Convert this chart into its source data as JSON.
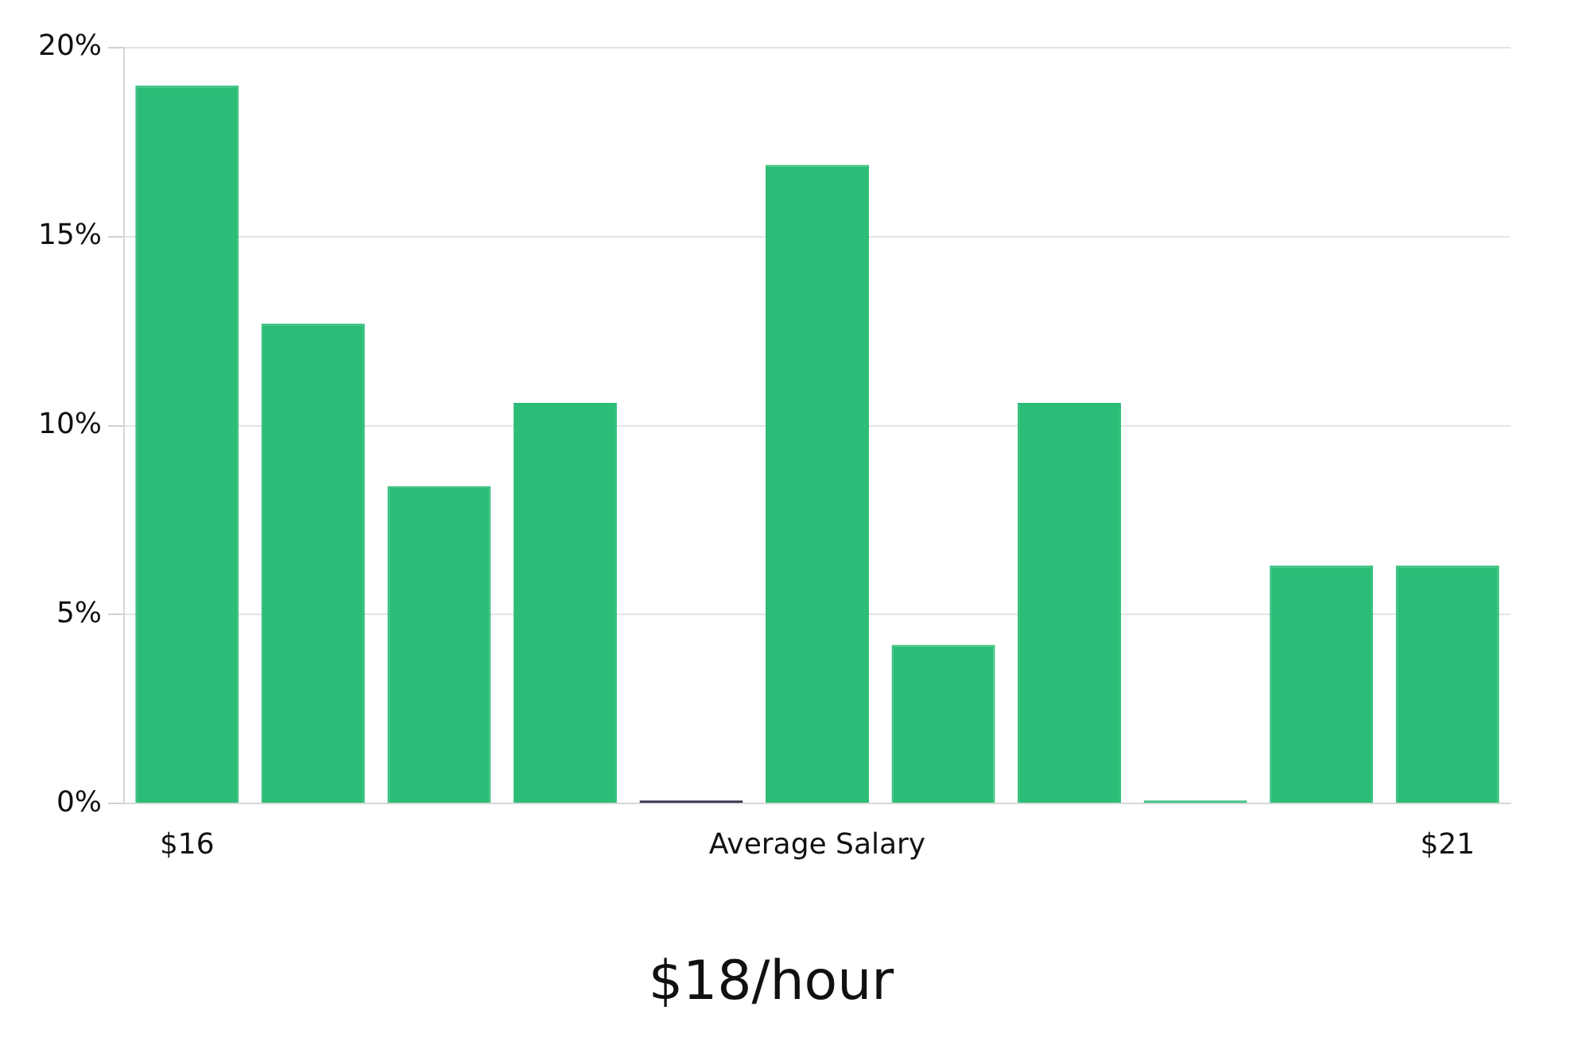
{
  "chart_data": {
    "type": "bar",
    "title": "$18/hour",
    "categories": [
      "$16",
      null,
      null,
      null,
      null,
      "Average Salary",
      null,
      null,
      null,
      null,
      "$21"
    ],
    "values": [
      19,
      12.7,
      8.4,
      10.6,
      0,
      16.9,
      4.2,
      10.6,
      0,
      6.3,
      6.3
    ],
    "colors": [
      "#2bbd77",
      "#2bbd77",
      "#2bbd77",
      "#2bbd77",
      "#1c1c3a",
      "#2bbd77",
      "#2bbd77",
      "#2bbd77",
      "#2bbd77",
      "#2bbd77",
      "#2bbd77"
    ],
    "ylim": [
      0,
      20
    ],
    "yticks": [
      {
        "value": 0,
        "label": "0%"
      },
      {
        "value": 5,
        "label": "5%"
      },
      {
        "value": 10,
        "label": "10%"
      },
      {
        "value": 15,
        "label": "15%"
      },
      {
        "value": 20,
        "label": "20%"
      }
    ],
    "grid": "y",
    "legend": false
  }
}
